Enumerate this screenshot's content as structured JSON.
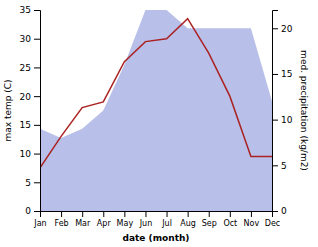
{
  "chart_data": {
    "type": "line",
    "categories": [
      "Jan",
      "Feb",
      "Mar",
      "Apr",
      "May",
      "Jun",
      "Jul",
      "Aug",
      "Sep",
      "Oct",
      "Nov",
      "Dec"
    ],
    "series": [
      {
        "type": "area",
        "axis": "y2",
        "color": "#b8bfe8",
        "values": [
          9,
          8,
          9,
          11,
          16,
          22,
          22,
          20,
          20,
          20,
          20,
          12
        ]
      },
      {
        "type": "line",
        "color": "#aa2222",
        "values": [
          7.5,
          13.0,
          18.0,
          19.0,
          26.0,
          29.5,
          30.0,
          33.5,
          27.5,
          20.0,
          9.5,
          9.5
        ]
      }
    ],
    "xlabel": "date (month)",
    "ylabel": "max temp (C)",
    "y2label": "med. precipitation (kg/m2)",
    "ylim": [
      0,
      35
    ],
    "yticks": [
      0,
      5,
      10,
      15,
      20,
      25,
      30,
      35
    ],
    "y2lim": [
      0,
      22
    ],
    "y2ticks": [
      0,
      5,
      10,
      15,
      20
    ],
    "grid": false
  }
}
